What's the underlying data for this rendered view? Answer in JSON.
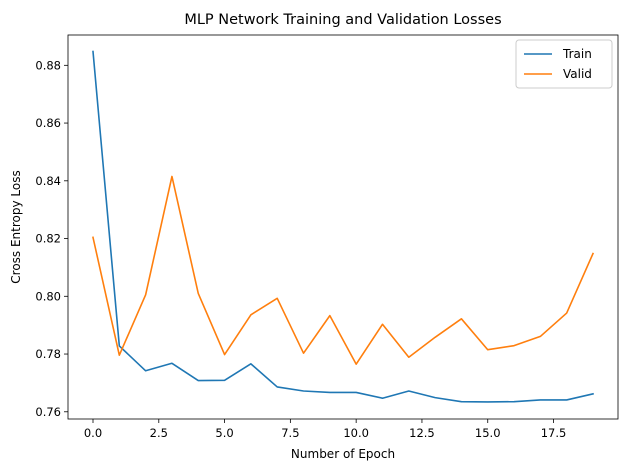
{
  "chart_data": {
    "type": "line",
    "title": "MLP Network Training and Validation Losses",
    "xlabel": "Number of Epoch",
    "ylabel": "Cross Entropy Loss",
    "x": [
      0,
      1,
      2,
      3,
      4,
      5,
      6,
      7,
      8,
      9,
      10,
      11,
      12,
      13,
      14,
      15,
      16,
      17,
      18,
      19
    ],
    "xlim": [
      -0.95,
      19.95
    ],
    "ylim": [
      0.7575,
      0.8905
    ],
    "xticks": [
      0.0,
      2.5,
      5.0,
      7.5,
      10.0,
      12.5,
      15.0,
      17.5
    ],
    "xtick_labels": [
      "0.0",
      "2.5",
      "5.0",
      "7.5",
      "10.0",
      "12.5",
      "15.0",
      "17.5"
    ],
    "yticks": [
      0.76,
      0.78,
      0.8,
      0.82,
      0.84,
      0.86,
      0.88
    ],
    "ytick_labels": [
      "0.76",
      "0.78",
      "0.80",
      "0.82",
      "0.84",
      "0.86",
      "0.88"
    ],
    "grid": false,
    "legend_position": "top-right",
    "series": [
      {
        "name": "Train",
        "color": "#1f77b4",
        "values": [
          0.8848,
          0.7828,
          0.7742,
          0.7768,
          0.7708,
          0.7709,
          0.7766,
          0.7686,
          0.7672,
          0.7667,
          0.7667,
          0.7647,
          0.7672,
          0.7649,
          0.7635,
          0.7634,
          0.7635,
          0.7641,
          0.7641,
          0.7662
        ]
      },
      {
        "name": "Valid",
        "color": "#ff7f0e",
        "values": [
          0.8204,
          0.7796,
          0.8005,
          0.8415,
          0.801,
          0.7798,
          0.7936,
          0.7993,
          0.7803,
          0.7933,
          0.7765,
          0.7903,
          0.7789,
          0.7858,
          0.7922,
          0.7815,
          0.7829,
          0.7861,
          0.7942,
          0.8148
        ]
      }
    ]
  }
}
